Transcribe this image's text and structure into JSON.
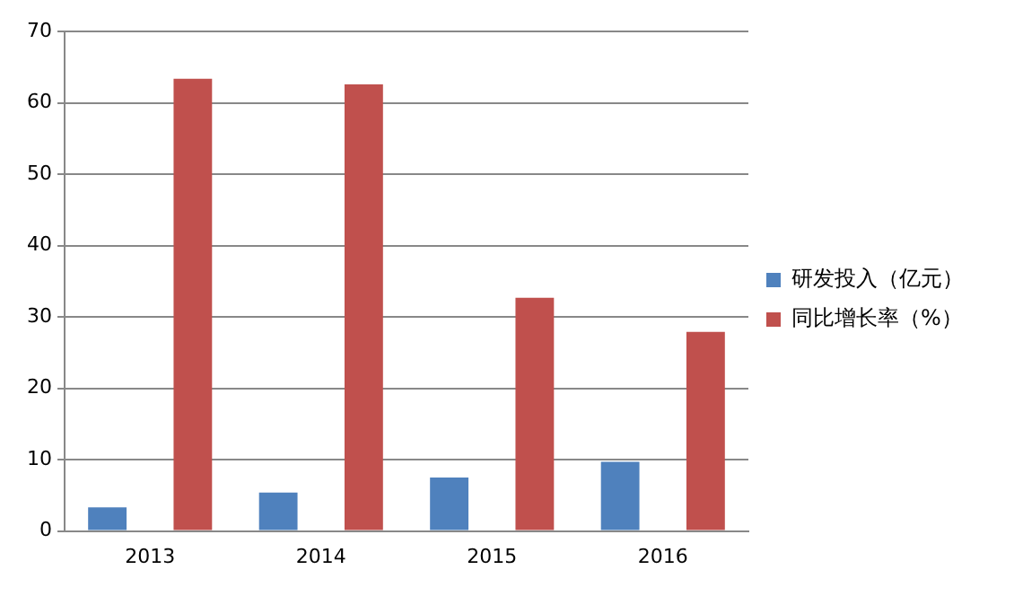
{
  "chart_data": {
    "type": "bar",
    "categories": [
      "2013",
      "2014",
      "2015",
      "2016"
    ],
    "series": [
      {
        "name": "研发投入（亿元）",
        "color": "#4f81bd",
        "values": [
          3.3,
          5.4,
          7.5,
          9.7
        ]
      },
      {
        "name": "同比增长率（%）",
        "color": "#c0504d",
        "values": [
          63.4,
          62.6,
          32.7,
          27.9
        ]
      }
    ],
    "ylim": [
      0,
      70
    ],
    "yticks": [
      0,
      10,
      20,
      30,
      40,
      50,
      60,
      70
    ],
    "grid": "y",
    "legend": "right"
  }
}
